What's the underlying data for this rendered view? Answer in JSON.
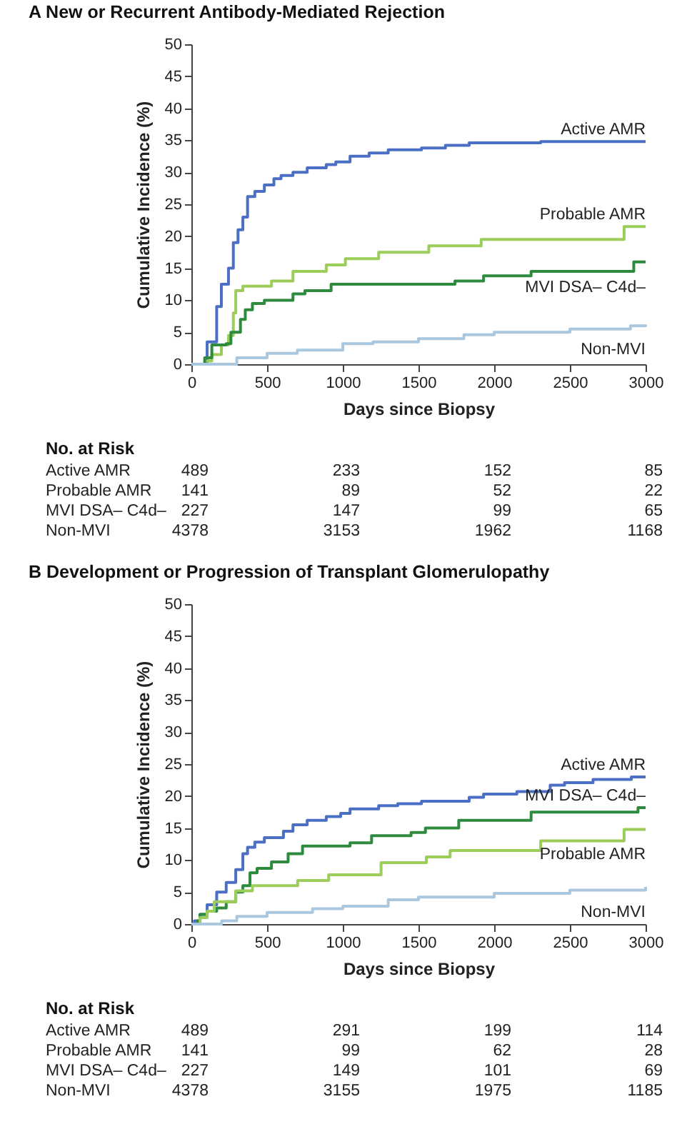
{
  "chart_data": [
    {
      "type": "step",
      "title": "A  New or Recurrent Antibody-Mediated Rejection",
      "xlabel": "Days since Biopsy",
      "ylabel": "Cumulative Incidence (%)",
      "xlim": [
        0,
        3000
      ],
      "xticks": [
        0,
        500,
        1000,
        1500,
        2000,
        2500,
        3000
      ],
      "ylim": [
        0,
        50
      ],
      "yticks": [
        0,
        5,
        10,
        15,
        20,
        25,
        30,
        35,
        40,
        45,
        50
      ],
      "series": [
        {
          "name": "Active AMR",
          "color": "#4a6fc4",
          "x": [
            0,
            88,
            104,
            167,
            198,
            245,
            277,
            308,
            340,
            371,
            419,
            482,
            545,
            592,
            671,
            765,
            891,
            954,
            1048,
            1174,
            1300,
            1520,
            1678,
            1835,
            2307,
            3000
          ],
          "values": [
            0,
            0,
            3.5,
            9,
            12.5,
            15,
            19,
            21,
            23,
            26.2,
            27,
            28,
            29,
            29.5,
            30,
            30.7,
            31.2,
            31.6,
            32.5,
            33,
            33.5,
            33.8,
            34.2,
            34.6,
            34.8,
            34.8
          ]
        },
        {
          "name": "Probable AMR",
          "color": "#9ccc5a",
          "x": [
            0,
            88,
            135,
            198,
            245,
            277,
            293,
            340,
            529,
            671,
            891,
            1017,
            1237,
            1568,
            1914,
            2858,
            3000
          ],
          "values": [
            0,
            0.5,
            1.5,
            3,
            4.5,
            8,
            11.5,
            12.2,
            13,
            14.5,
            15.5,
            16.5,
            17.5,
            18.5,
            19.5,
            21.5,
            21.5
          ]
        },
        {
          "name": "MVI DSA– C4d–",
          "color": "#2e8b3e",
          "x": [
            0,
            88,
            135,
            230,
            261,
            324,
            356,
            403,
            482,
            671,
            750,
            923,
            1741,
            1930,
            2244,
            2922,
            3000
          ],
          "values": [
            0,
            1,
            3,
            3.2,
            5,
            7,
            8.5,
            9.5,
            10,
            11,
            11.5,
            12.5,
            13,
            13.8,
            14.5,
            16,
            16
          ]
        },
        {
          "name": "Non-MVI",
          "color": "#a9c8e0",
          "x": [
            0,
            100,
            300,
            500,
            700,
            1000,
            1200,
            1500,
            1800,
            2000,
            2500,
            2900,
            3000
          ],
          "values": [
            0,
            0,
            1,
            1.7,
            2.2,
            3.2,
            3.5,
            4,
            4.6,
            5,
            5.5,
            6,
            6.2
          ]
        }
      ],
      "annotations": [
        "No. at Risk",
        "Active AMR",
        "489",
        "233",
        "152",
        "85",
        "Probable AMR",
        "141",
        "89",
        "52",
        "22",
        "MVI DSA– C4d–",
        "227",
        "147",
        "99",
        "65",
        "Non-MVI",
        "4378",
        "3153",
        "1962",
        "1168"
      ]
    },
    {
      "type": "step",
      "title": "B  Development or Progression of Transplant Glomerulopathy",
      "xlabel": "Days since Biopsy",
      "ylabel": "Cumulative Incidence (%)",
      "xlim": [
        0,
        3000
      ],
      "xticks": [
        0,
        500,
        1000,
        1500,
        2000,
        2500,
        3000
      ],
      "ylim": [
        0,
        50
      ],
      "yticks": [
        0,
        5,
        10,
        15,
        20,
        25,
        30,
        35,
        40,
        45,
        50
      ],
      "series": [
        {
          "name": "Active AMR",
          "color": "#4a6fc4",
          "x": [
            0,
            20,
            57,
            104,
            167,
            230,
            293,
            340,
            371,
            419,
            482,
            608,
            671,
            765,
            891,
            986,
            1048,
            1237,
            1363,
            1520,
            1835,
            1930,
            2150,
            2370,
            2465,
            2653,
            2906,
            3000
          ],
          "values": [
            0,
            0.5,
            1.5,
            3,
            5,
            6.5,
            8.5,
            11,
            12,
            12.8,
            13.5,
            14.5,
            15.5,
            16.2,
            16.8,
            17.3,
            18,
            18.5,
            18.8,
            19.2,
            19.8,
            20.3,
            20.7,
            21.7,
            22.1,
            22.6,
            23,
            23
          ]
        },
        {
          "name": "MVI DSA– C4d–",
          "color": "#2e8b3e",
          "x": [
            0,
            41,
            57,
            104,
            167,
            230,
            293,
            340,
            387,
            434,
            529,
            639,
            734,
            1048,
            1190,
            1451,
            1546,
            1766,
            2244,
            2950,
            3000
          ],
          "values": [
            0,
            0.5,
            1.5,
            2,
            2.5,
            3.5,
            5,
            6,
            8,
            8.7,
            9.7,
            11,
            12.2,
            12.7,
            13.8,
            14.3,
            15,
            16.2,
            17.5,
            18.2,
            18.2
          ]
        },
        {
          "name": "Probable AMR",
          "color": "#9ccc5a",
          "x": [
            0,
            57,
            104,
            151,
            293,
            403,
            702,
            907,
            1253,
            1552,
            1709,
            2307,
            2858,
            3000
          ],
          "values": [
            0,
            1,
            2,
            3.5,
            5.2,
            6,
            6.8,
            7.7,
            9.6,
            10.5,
            11.5,
            13,
            14.8,
            14.8
          ]
        },
        {
          "name": "Non-MVI",
          "color": "#a9c8e0",
          "x": [
            0,
            200,
            300,
            500,
            800,
            1000,
            1300,
            1500,
            2000,
            2500,
            3000
          ],
          "values": [
            0,
            0.5,
            1.2,
            1.8,
            2.4,
            2.8,
            3.8,
            4.2,
            4.8,
            5.3,
            5.8
          ]
        }
      ],
      "annotations": [
        "No. at Risk",
        "Active AMR",
        "489",
        "291",
        "199",
        "114",
        "Probable AMR",
        "141",
        "99",
        "62",
        "28",
        "MVI DSA– C4d–",
        "227",
        "149",
        "101",
        "69",
        "Non-MVI",
        "4378",
        "3155",
        "1975",
        "1185"
      ]
    }
  ]
}
